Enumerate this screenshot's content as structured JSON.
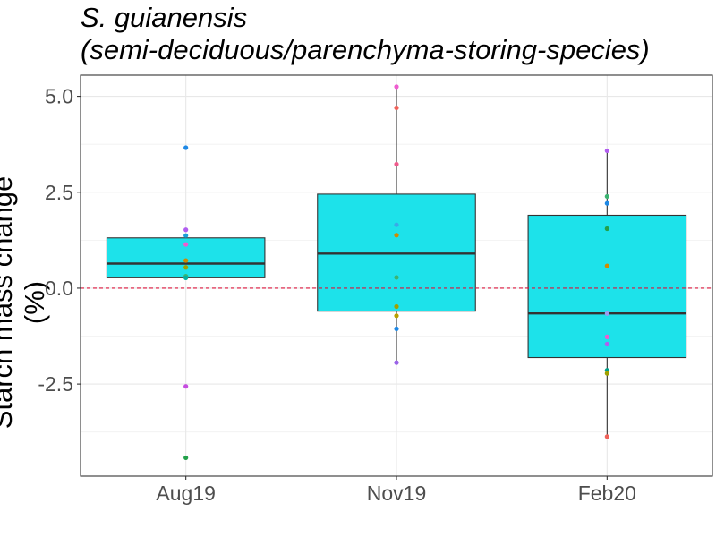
{
  "chart_data": {
    "type": "boxplot",
    "title_line1": "S. guianensis",
    "title_line2": "(semi-deciduous/parenchyma-storing-species)",
    "xlabel": "",
    "ylabel": "Starch mass change (%)",
    "categories": [
      "Aug19",
      "Nov19",
      "Feb20"
    ],
    "ylim": [
      -4.9,
      5.55
    ],
    "yticks": [
      -2.5,
      0.0,
      2.5,
      5.0
    ],
    "ytick_labels": [
      "-2.5",
      "0.0",
      "2.5",
      "5.0"
    ],
    "reference_line": {
      "y": 0,
      "style": "dashed",
      "color": "#dc143c"
    },
    "box_fill": "#1de2ea",
    "boxes": [
      {
        "category": "Aug19",
        "q1": 0.27,
        "median": 0.64,
        "q3": 1.31,
        "whisker_low": 0.27,
        "whisker_high": 1.31
      },
      {
        "category": "Nov19",
        "q1": -0.6,
        "median": 0.9,
        "q3": 2.45,
        "whisker_low": -1.94,
        "whisker_high": 5.25
      },
      {
        "category": "Feb20",
        "q1": -1.81,
        "median": -0.66,
        "q3": 1.9,
        "whisker_low": -3.87,
        "whisker_high": 3.58
      }
    ],
    "points": [
      {
        "category": "Aug19",
        "y": 3.66,
        "color": "#1e88e5"
      },
      {
        "category": "Aug19",
        "y": 1.52,
        "color": "#b15df0"
      },
      {
        "category": "Aug19",
        "y": 1.37,
        "color": "#1aa0d8"
      },
      {
        "category": "Aug19",
        "y": 1.14,
        "color": "#ee5ccf"
      },
      {
        "category": "Aug19",
        "y": 0.72,
        "color": "#d08a00"
      },
      {
        "category": "Aug19",
        "y": 0.54,
        "color": "#a0a000"
      },
      {
        "category": "Aug19",
        "y": 0.31,
        "color": "#3cb371"
      },
      {
        "category": "Aug19",
        "y": 0.27,
        "color": "#00b0a0"
      },
      {
        "category": "Aug19",
        "y": -2.56,
        "color": "#c64de0"
      },
      {
        "category": "Aug19",
        "y": -4.42,
        "color": "#22a04a"
      },
      {
        "category": "Nov19",
        "y": 5.25,
        "color": "#ee5ccf"
      },
      {
        "category": "Nov19",
        "y": 4.7,
        "color": "#f0625a"
      },
      {
        "category": "Nov19",
        "y": 3.23,
        "color": "#f05a8c"
      },
      {
        "category": "Nov19",
        "y": 1.65,
        "color": "#3aa8e8"
      },
      {
        "category": "Nov19",
        "y": 1.38,
        "color": "#d08a00"
      },
      {
        "category": "Nov19",
        "y": 0.28,
        "color": "#3cb371"
      },
      {
        "category": "Nov19",
        "y": -0.48,
        "color": "#a0a000"
      },
      {
        "category": "Nov19",
        "y": -0.72,
        "color": "#b8a000"
      },
      {
        "category": "Nov19",
        "y": -1.06,
        "color": "#1e88e5"
      },
      {
        "category": "Nov19",
        "y": -1.94,
        "color": "#9a63e8"
      },
      {
        "category": "Feb20",
        "y": 3.58,
        "color": "#b15df0"
      },
      {
        "category": "Feb20",
        "y": 2.39,
        "color": "#3cb371"
      },
      {
        "category": "Feb20",
        "y": 2.21,
        "color": "#1e88e5"
      },
      {
        "category": "Feb20",
        "y": 1.55,
        "color": "#22a04a"
      },
      {
        "category": "Feb20",
        "y": 0.58,
        "color": "#d08a00"
      },
      {
        "category": "Feb20",
        "y": -0.66,
        "color": "#9a9aee"
      },
      {
        "category": "Feb20",
        "y": -1.27,
        "color": "#ee5ccf"
      },
      {
        "category": "Feb20",
        "y": -1.46,
        "color": "#b15df0"
      },
      {
        "category": "Feb20",
        "y": -2.14,
        "color": "#00a08a"
      },
      {
        "category": "Feb20",
        "y": -2.22,
        "color": "#a0a000"
      },
      {
        "category": "Feb20",
        "y": -3.87,
        "color": "#f0625a"
      }
    ]
  }
}
